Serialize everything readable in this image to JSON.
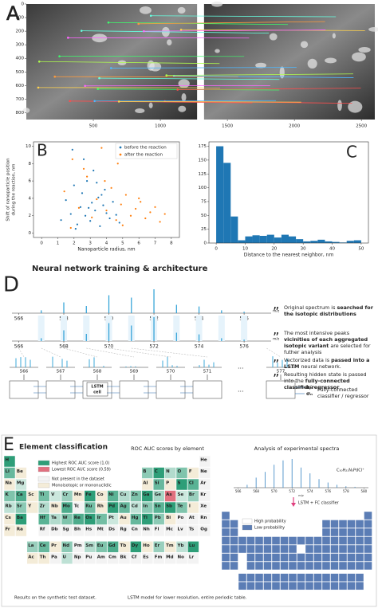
{
  "chart_data": [
    {
      "type": "image-pair",
      "label": "A",
      "xlim": [
        0,
        2600
      ],
      "ylim": [
        0,
        850
      ],
      "xticks": [
        500,
        1000,
        1500,
        2000,
        2500
      ],
      "yticks": [
        0,
        100,
        200,
        300,
        400,
        500,
        600,
        700,
        800
      ]
    },
    {
      "type": "scatter",
      "label": "B",
      "xlabel": "Nanoparticle radius, nm",
      "ylabel": [
        "Shift of nanoparticle position",
        "during the reaction, nm"
      ],
      "xlim": [
        -0.5,
        8.5
      ],
      "ylim": [
        -0.5,
        10.5
      ],
      "xticks": [
        0,
        1,
        2,
        3,
        4,
        5,
        6,
        7,
        8
      ],
      "yticks": [
        0,
        2,
        4,
        6,
        8,
        10
      ],
      "legend": "upper right",
      "series": [
        {
          "name": "before the reaction",
          "color": "#1f77b4",
          "x": [
            1.2,
            1.5,
            1.8,
            2.0,
            2.2,
            2.4,
            2.5,
            2.7,
            2.8,
            3.0,
            3.1,
            3.2,
            3.3,
            3.5,
            3.6,
            3.8,
            3.9,
            4.0,
            4.2,
            4.4,
            4.6,
            4.8,
            2.1,
            2.9,
            3.4,
            1.9,
            3.7,
            2.6
          ],
          "values": [
            1.5,
            3.8,
            2.2,
            5.5,
            1.0,
            3.0,
            4.6,
            2.0,
            6.0,
            1.4,
            3.5,
            7.2,
            2.6,
            4.1,
            0.8,
            3.2,
            5.0,
            2.3,
            1.7,
            3.6,
            2.1,
            1.2,
            0.5,
            2.9,
            5.8,
            9.6,
            4.4,
            8.5
          ]
        },
        {
          "name": "after the reaction",
          "color": "#ff7f0e",
          "x": [
            1.4,
            1.9,
            2.3,
            2.8,
            3.1,
            3.4,
            3.7,
            4.0,
            4.3,
            4.6,
            4.9,
            5.2,
            5.5,
            5.8,
            6.1,
            6.4,
            6.7,
            7.0,
            7.3,
            7.6,
            2.6,
            3.9,
            5.0,
            6.0,
            1.8,
            4.7
          ],
          "values": [
            4.8,
            8.5,
            2.9,
            6.5,
            1.8,
            3.9,
            9.8,
            2.6,
            5.2,
            1.5,
            3.3,
            4.4,
            2.0,
            2.8,
            3.6,
            1.7,
            2.4,
            3.0,
            1.3,
            2.2,
            7.4,
            6.0,
            0.9,
            4.0,
            0.6,
            8.0
          ]
        }
      ]
    },
    {
      "type": "histogram",
      "label": "C",
      "xlabel": "Distance to the nearest neighbor, nm",
      "color": "#1f77b4",
      "bins": [
        0,
        2.5,
        5,
        7.5,
        10,
        12.5,
        15,
        17.5,
        20,
        22.5,
        25,
        27.5,
        30,
        32.5,
        35,
        37.5,
        40,
        42.5,
        45,
        47.5,
        50
      ],
      "values": [
        175,
        145,
        48,
        5,
        12,
        14,
        13,
        15,
        10,
        15,
        12,
        7,
        3,
        4,
        6,
        3,
        2,
        1,
        4,
        5
      ],
      "xlim": [
        -2.5,
        52.5
      ],
      "ylim": [
        0,
        183
      ],
      "xticks": [
        0,
        10,
        20,
        30,
        40,
        50
      ],
      "yticks": [
        0,
        25,
        50,
        75,
        100,
        125,
        150,
        175
      ]
    }
  ],
  "panel_d": {
    "label": "D",
    "title": "Neural network training & architecture",
    "unit": "m/z",
    "ticks": [
      566,
      568,
      570,
      572,
      574,
      576
    ],
    "spectrum": {
      "color": "#2a9fd6",
      "x": [
        567,
        568,
        569,
        570,
        571,
        572,
        573,
        574,
        575,
        576
      ],
      "values": [
        0.12,
        0.45,
        0.3,
        0.75,
        0.65,
        1.0,
        0.35,
        0.28,
        0.12,
        0.06
      ]
    },
    "boxes": [
      566,
      567,
      568,
      569,
      570,
      571,
      577
    ],
    "ellipsis": "...",
    "cell": [
      "LSTM",
      "cell"
    ],
    "outputs": [
      "hₙ",
      "σₙ"
    ],
    "classifier": "Fully-connected classifier / regressor",
    "notes": [
      [
        {
          "text": "Original spectrum is ",
          "bold": false
        },
        {
          "text": "searched for the isotopic distributions",
          "bold": true
        }
      ],
      [
        {
          "text": "The most intensive peaks ",
          "bold": false
        },
        {
          "text": "vicinities of each aggregated isotopic variant",
          "bold": true
        },
        {
          "text": " are selected for futher analysis",
          "bold": false
        }
      ],
      [
        {
          "text": "Vectorized data is ",
          "bold": false
        },
        {
          "text": "passed into a LSTM",
          "bold": true
        },
        {
          "text": " neural network.",
          "bold": false
        }
      ],
      [
        {
          "text": "Resulting hidden state is passed into the ",
          "bold": false
        },
        {
          "text": "fully-connected classifier/regressor",
          "bold": true
        },
        {
          "text": ".",
          "bold": false
        }
      ]
    ]
  },
  "panel_e": {
    "label": "E",
    "title": "Element classification",
    "left_title": "ROC AUC scores by element",
    "right_title": "Analysis of experimental spectra",
    "symbols": [
      "H",
      "He",
      "Li",
      "Be",
      "B",
      "C",
      "N",
      "O",
      "F",
      "Ne",
      "Na",
      "Mg",
      "Al",
      "Si",
      "P",
      "S",
      "Cl",
      "Ar",
      "K",
      "Ca",
      "Sc",
      "Ti",
      "V",
      "Cr",
      "Mn",
      "Fe",
      "Co",
      "Ni",
      "Cu",
      "Zn",
      "Ga",
      "Ge",
      "As",
      "Se",
      "Br",
      "Kr",
      "Rb",
      "Sr",
      "Y",
      "Zr",
      "Nb",
      "Mo",
      "Tc",
      "Ru",
      "Rh",
      "Pd",
      "Ag",
      "Cd",
      "In",
      "Sn",
      "Sb",
      "Te",
      "I",
      "Xe",
      "Cs",
      "Ba",
      "La",
      "Ce",
      "Pr",
      "Nd",
      "Pm",
      "Sm",
      "Eu",
      "Gd",
      "Tb",
      "Dy",
      "Ho",
      "Er",
      "Tm",
      "Yb",
      "Lu",
      "Hf",
      "Ta",
      "W",
      "Re",
      "Os",
      "Ir",
      "Pt",
      "Au",
      "Hg",
      "Tl",
      "Pb",
      "Bi",
      "Po",
      "At",
      "Rn",
      "Fr",
      "Ra",
      "Ac",
      "Th",
      "Pa",
      "U",
      "Np",
      "Pu",
      "Am",
      "Cm",
      "Bk",
      "Cf",
      "Es",
      "Fm",
      "Md",
      "No",
      "Lr",
      "Rf",
      "Db",
      "Sg",
      "Bh",
      "Hs",
      "Mt",
      "Ds",
      "Rg",
      "Cn",
      "Nh",
      "Fl",
      "Mc",
      "Lv",
      "Ts",
      "Og"
    ],
    "legend": [
      {
        "label": "Highest ROC AUC score (1.0)",
        "color": "#2e9e78"
      },
      {
        "label": "Lowest ROC AUC score (0.59)",
        "color": "#e0707f"
      },
      {
        "label": "Not present in the dataset",
        "color": "#f3f3f3"
      },
      {
        "label": "Monoisotopic or mononuclidic",
        "color": "#f4ecd8"
      }
    ],
    "lowest": [
      "As"
    ],
    "absent": [
      "He",
      "Ne",
      "Ar",
      "Kr",
      "Xe",
      "Rn",
      "Tc",
      "Pm",
      "Po",
      "At",
      "Pa",
      "Np",
      "Pu",
      "Am",
      "Cm",
      "Bk",
      "Cf",
      "Es",
      "Fm",
      "Md",
      "No",
      "Lr",
      "Rf",
      "Db",
      "Sg",
      "Bh",
      "Hs",
      "Mt",
      "Ds",
      "Rg",
      "Cn",
      "Nh",
      "Fl",
      "Mc",
      "Lv",
      "Ts",
      "Og"
    ],
    "mono": [
      "Be",
      "F",
      "Na",
      "Al",
      "P",
      "Sc",
      "Mn",
      "Co",
      "Y",
      "Nb",
      "Rh",
      "I",
      "Cs",
      "Pr",
      "Tb",
      "Ho",
      "Tm",
      "Au",
      "Bi",
      "Fr",
      "Ra",
      "Ac",
      "Th"
    ],
    "formula": "C₃₀H₂₁N₃PdCl⁺",
    "classifier": "LSTM + FC classifier",
    "spectrum": {
      "color": "#4a90c8",
      "x": [
        567,
        568,
        569,
        570,
        571,
        572,
        573,
        574,
        575,
        576,
        577,
        578,
        579
      ],
      "values": [
        0.1,
        0.35,
        0.55,
        0.8,
        0.95,
        1.0,
        0.7,
        0.5,
        0.3,
        0.18,
        0.1,
        0.05,
        0.03
      ],
      "xlim": [
        565.5,
        580.5
      ],
      "ticks": [
        566,
        568,
        570,
        572,
        574,
        576,
        578,
        580
      ],
      "unit": "m/z"
    },
    "prob_legend": [
      {
        "label": "High probability",
        "color": "#ffffff"
      },
      {
        "label": "Low probability",
        "color": "#5b7db5"
      }
    ],
    "high": [
      "Pd"
    ],
    "captions": [
      "Results on the synthetic test dataset.",
      "LSTM model for lower resolution, entire periodic table."
    ]
  }
}
